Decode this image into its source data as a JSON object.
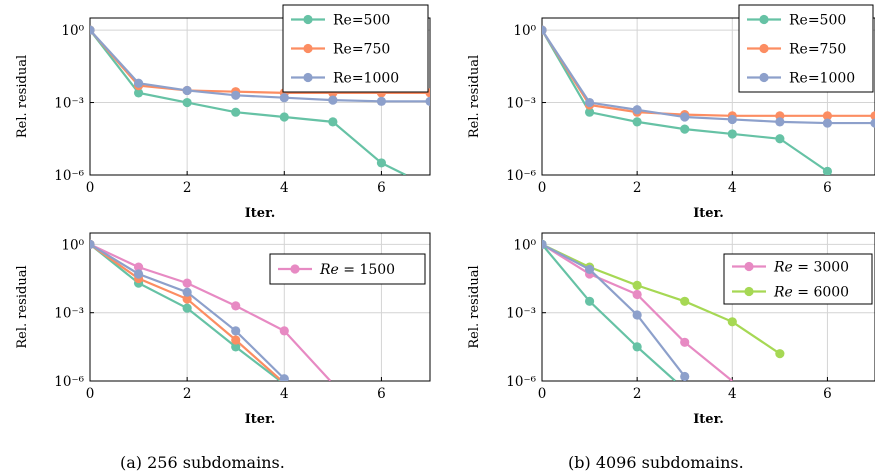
{
  "captions": {
    "left": "(a) 256 subdomains.",
    "right": "(b) 4096 subdomains."
  },
  "colors": {
    "teal": "#66c2a5",
    "orange": "#fc8d62",
    "blue": "#8da0cb",
    "pink": "#e78ac3",
    "lime": "#a6d854"
  },
  "chart_data": [
    {
      "type": "line",
      "xlabel": "Iter.",
      "ylabel": "Rel. residual",
      "xlim": [
        0,
        7
      ],
      "ylim_log10": [
        -6,
        0.5
      ],
      "yscale": "log",
      "xticks": [
        "0",
        "2",
        "4",
        "6"
      ],
      "yticks": [
        "10⁰",
        "10⁻³",
        "10⁻⁶"
      ],
      "grid": true,
      "legend_position": "top-right",
      "series": [
        {
          "name": "Re=500",
          "color": "#66c2a5",
          "x": [
            0,
            1,
            2,
            3,
            4,
            5,
            6,
            6.5
          ],
          "log10y": [
            0,
            -2.6,
            -3.0,
            -3.4,
            -3.6,
            -3.8,
            -5.5,
            -6.0
          ]
        },
        {
          "name": "Re=750",
          "color": "#fc8d62",
          "x": [
            0,
            1,
            2,
            3,
            4,
            5,
            6,
            7
          ],
          "log10y": [
            0,
            -2.3,
            -2.5,
            -2.55,
            -2.6,
            -2.6,
            -2.6,
            -2.6
          ]
        },
        {
          "name": "Re=1000",
          "color": "#8da0cb",
          "x": [
            0,
            1,
            2,
            3,
            4,
            5,
            6,
            7
          ],
          "log10y": [
            0,
            -2.2,
            -2.5,
            -2.7,
            -2.8,
            -2.9,
            -2.95,
            -2.95
          ]
        }
      ]
    },
    {
      "type": "line",
      "xlabel": "Iter.",
      "ylabel": "Rel. residual",
      "xlim": [
        0,
        7
      ],
      "ylim_log10": [
        -6,
        0.5
      ],
      "yscale": "log",
      "xticks": [
        "0",
        "2",
        "4",
        "6"
      ],
      "yticks": [
        "10⁰",
        "10⁻³",
        "10⁻⁶"
      ],
      "grid": true,
      "legend_position": "top-right",
      "series": [
        {
          "name": "Re=500",
          "color": "#66c2a5",
          "x": [
            0,
            1,
            2,
            3,
            4,
            5,
            6
          ],
          "log10y": [
            0,
            -3.4,
            -3.8,
            -4.1,
            -4.3,
            -4.5,
            -5.85
          ]
        },
        {
          "name": "Re=750",
          "color": "#fc8d62",
          "x": [
            0,
            1,
            2,
            3,
            4,
            5,
            6,
            7
          ],
          "log10y": [
            0,
            -3.1,
            -3.4,
            -3.5,
            -3.55,
            -3.55,
            -3.55,
            -3.55
          ]
        },
        {
          "name": "Re=1000",
          "color": "#8da0cb",
          "x": [
            0,
            1,
            2,
            3,
            4,
            5,
            6,
            7
          ],
          "log10y": [
            0,
            -3.0,
            -3.3,
            -3.6,
            -3.7,
            -3.8,
            -3.85,
            -3.85
          ]
        }
      ]
    },
    {
      "type": "line",
      "xlabel": "Iter.",
      "ylabel": "Rel. residual",
      "xlim": [
        0,
        7
      ],
      "ylim_log10": [
        -6,
        0.5
      ],
      "yscale": "log",
      "xticks": [
        "0",
        "2",
        "4",
        "6"
      ],
      "yticks": [
        "10⁰",
        "10⁻³",
        "10⁻⁶"
      ],
      "grid": true,
      "legend_position": "top-right",
      "series": [
        {
          "name": "Re = 1500",
          "legend_italic_prefix": "Re",
          "legend_suffix": " = 1500",
          "color": "#e78ac3",
          "x": [
            0,
            1,
            2,
            3,
            4,
            4.95
          ],
          "log10y": [
            0,
            -1.0,
            -1.7,
            -2.7,
            -3.8,
            -6.0
          ]
        },
        {
          "name": "",
          "color": "#66c2a5",
          "x": [
            0,
            1,
            2,
            3,
            3.92
          ],
          "log10y": [
            0,
            -1.7,
            -2.8,
            -4.5,
            -6.0
          ]
        },
        {
          "name": "",
          "color": "#fc8d62",
          "x": [
            0,
            1,
            2,
            3,
            3.95
          ],
          "log10y": [
            0,
            -1.5,
            -2.4,
            -4.2,
            -6.0
          ]
        },
        {
          "name": "",
          "color": "#8da0cb",
          "x": [
            0,
            1,
            2,
            3,
            4
          ],
          "log10y": [
            0,
            -1.3,
            -2.1,
            -3.8,
            -5.9
          ]
        }
      ]
    },
    {
      "type": "line",
      "xlabel": "Iter.",
      "ylabel": "Rel. residual",
      "xlim": [
        0,
        7
      ],
      "ylim_log10": [
        -6,
        0.5
      ],
      "yscale": "log",
      "xticks": [
        "0",
        "2",
        "4",
        "6"
      ],
      "yticks": [
        "10⁰",
        "10⁻³",
        "10⁻⁶"
      ],
      "grid": true,
      "legend_position": "top-right",
      "series": [
        {
          "name": "Re = 3000",
          "legend_italic_prefix": "Re",
          "legend_suffix": " = 3000",
          "color": "#e78ac3",
          "x": [
            0,
            1,
            2,
            3,
            4
          ],
          "log10y": [
            0,
            -1.3,
            -2.2,
            -4.3,
            -6.0
          ]
        },
        {
          "name": "Re = 6000",
          "legend_italic_prefix": "Re",
          "legend_suffix": " = 6000",
          "color": "#a6d854",
          "x": [
            0,
            1,
            2,
            3,
            4,
            5
          ],
          "log10y": [
            0,
            -1.0,
            -1.8,
            -2.5,
            -3.4,
            -4.8
          ]
        },
        {
          "name": "",
          "color": "#66c2a5",
          "x": [
            0,
            1,
            2,
            2.8
          ],
          "log10y": [
            0,
            -2.5,
            -4.5,
            -6.0
          ]
        },
        {
          "name": "",
          "color": "#8da0cb",
          "x": [
            0,
            1,
            2,
            3
          ],
          "log10y": [
            0,
            -1.1,
            -3.1,
            -5.8
          ]
        }
      ]
    }
  ]
}
